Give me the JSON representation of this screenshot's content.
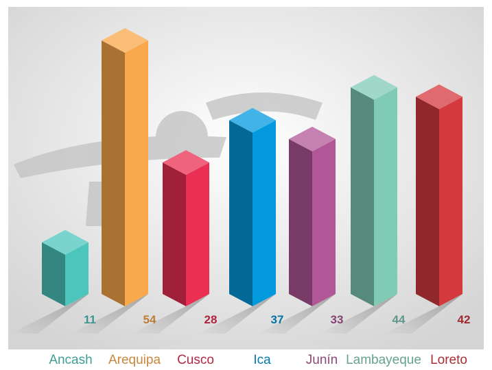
{
  "chart_data": {
    "type": "bar3d",
    "categories": [
      "Ancash",
      "Arequipa",
      "Cusco",
      "Ica",
      "Junín",
      "Lambayeque",
      "Loreto"
    ],
    "values": [
      11,
      54,
      28,
      37,
      33,
      44,
      42
    ],
    "colors": [
      "#4cc6bd",
      "#f9a84b",
      "#ea2f52",
      "#0399dd",
      "#b15797",
      "#7fcbb5",
      "#d4393e"
    ]
  }
}
